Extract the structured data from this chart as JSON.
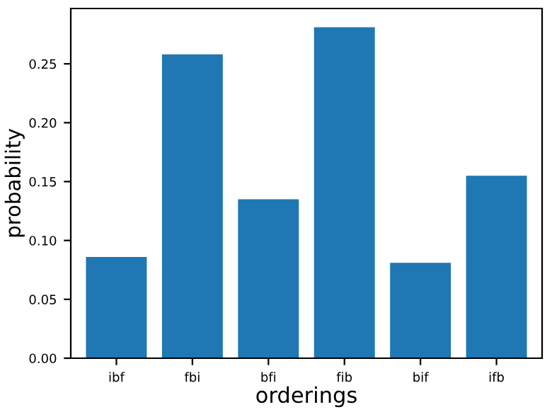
{
  "chart_data": {
    "type": "bar",
    "xlabel": "orderings",
    "ylabel": "probability",
    "categories": [
      "ibf",
      "fbi",
      "bfi",
      "fib",
      "bif",
      "ifb"
    ],
    "values": [
      0.086,
      0.258,
      0.135,
      0.281,
      0.081,
      0.155
    ],
    "color": "#1f77b4",
    "ylim": [
      0,
      0.297
    ],
    "yticks": [
      {
        "value": 0,
        "label": "0.00"
      },
      {
        "value": 0.05,
        "label": "0.05"
      },
      {
        "value": 0.1,
        "label": "0.10"
      },
      {
        "value": 0.15,
        "label": "0.15"
      },
      {
        "value": 0.2,
        "label": "0.20"
      },
      {
        "value": 0.25,
        "label": "0.25"
      }
    ],
    "grid": false
  }
}
